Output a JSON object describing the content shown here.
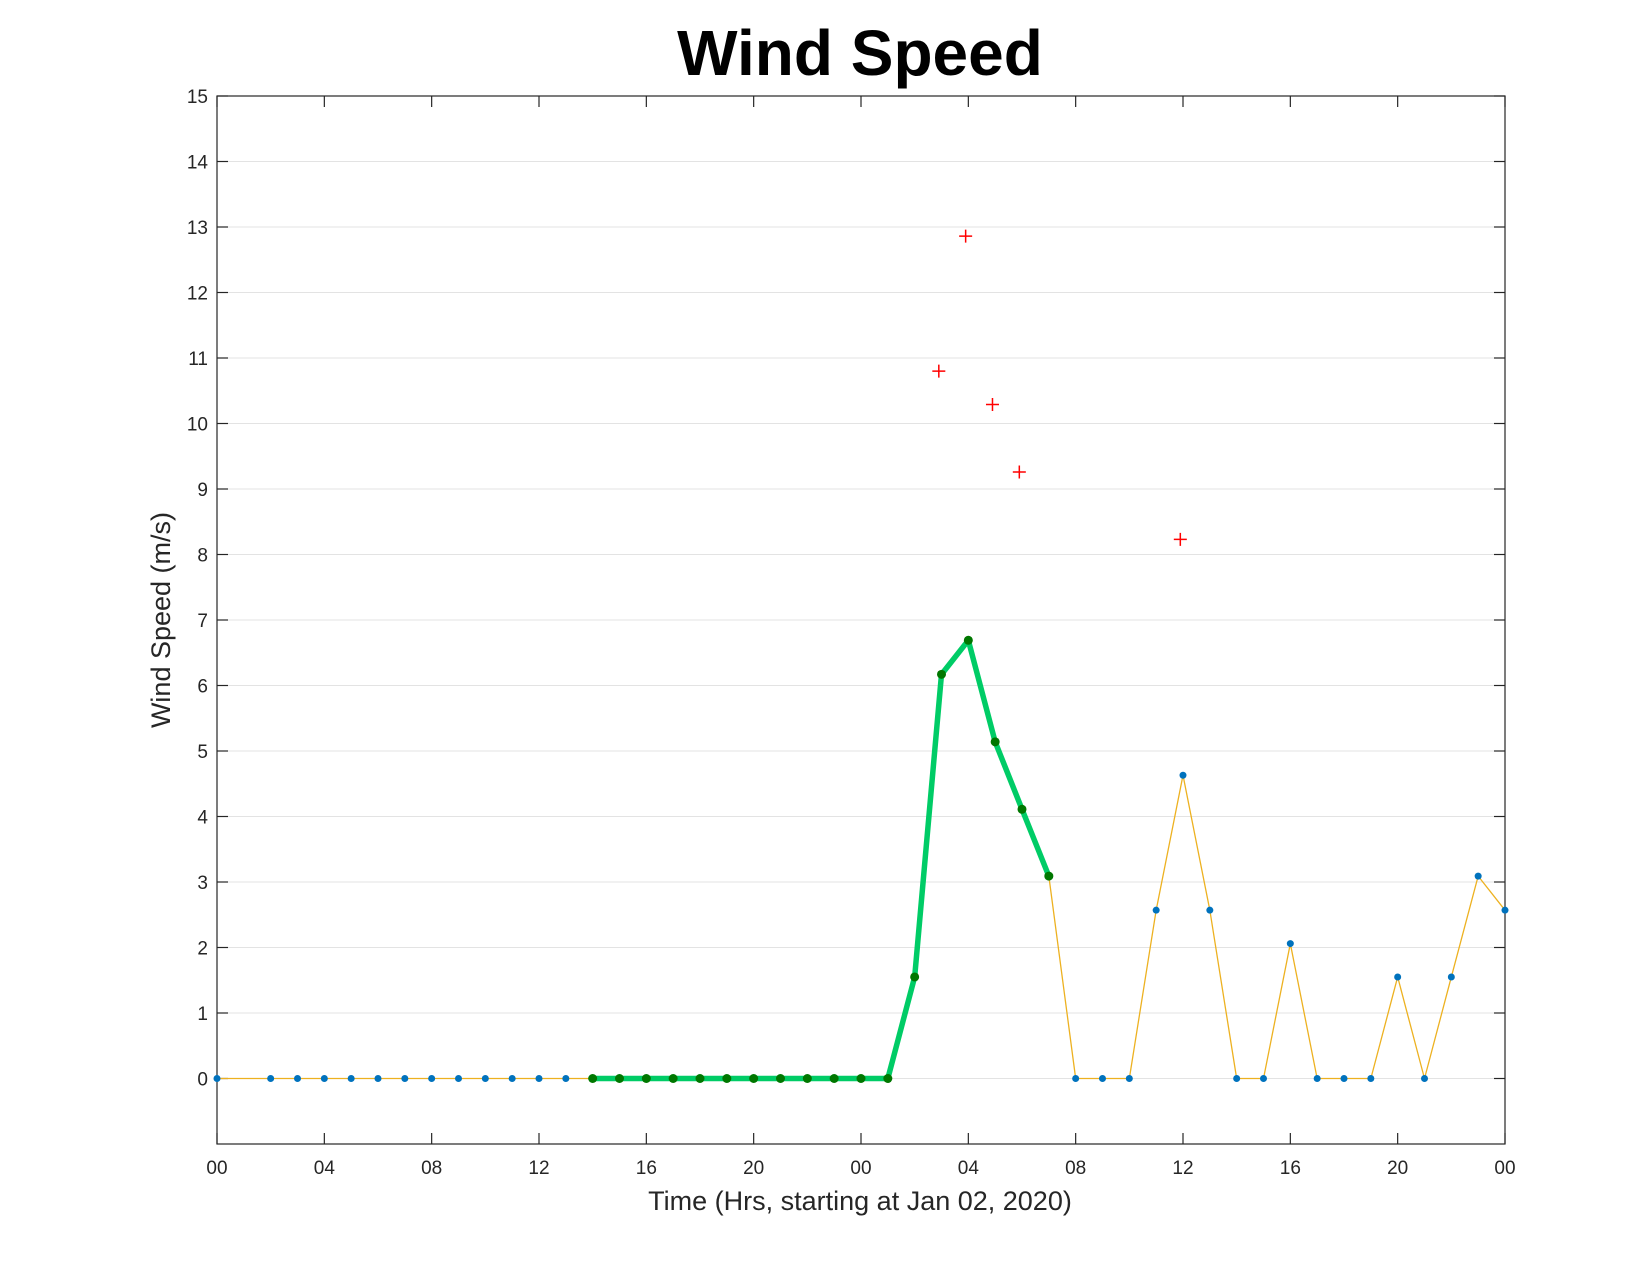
{
  "chart_data": {
    "type": "line",
    "title": "Wind Speed",
    "xlabel": "Time (Hrs, starting at Jan 02, 2020)",
    "ylabel": "Wind Speed (m/s)",
    "ylim": [
      -1,
      15
    ],
    "y_ticks": [
      "0",
      "1",
      "2",
      "3",
      "4",
      "5",
      "6",
      "7",
      "8",
      "9",
      "10",
      "11",
      "12",
      "13",
      "14",
      "15"
    ],
    "x_range_hours": [
      0,
      48
    ],
    "x_ticks": [
      "00",
      "04",
      "08",
      "12",
      "16",
      "20",
      "00",
      "04",
      "08",
      "12",
      "16",
      "20",
      "00"
    ],
    "grid": "horizontal",
    "legend": "none",
    "series": [
      {
        "style": "thin-line-with-dots",
        "line_color": "#EDB120",
        "marker_color": "#0072BD",
        "points": [
          [
            0,
            0
          ],
          [
            2,
            0
          ],
          [
            3,
            0
          ],
          [
            4,
            0
          ],
          [
            5,
            0
          ],
          [
            6,
            0
          ],
          [
            7,
            0
          ],
          [
            8,
            0
          ],
          [
            9,
            0
          ],
          [
            10,
            0
          ],
          [
            11,
            0
          ],
          [
            12,
            0
          ],
          [
            13,
            0
          ],
          [
            14,
            0
          ],
          [
            15,
            0
          ],
          [
            16,
            0
          ],
          [
            17,
            0
          ],
          [
            18,
            0
          ],
          [
            19,
            0
          ],
          [
            20,
            0
          ],
          [
            21,
            0
          ],
          [
            22,
            0
          ],
          [
            23,
            0
          ],
          [
            24,
            0
          ],
          [
            25,
            0
          ],
          [
            26,
            1.55
          ],
          [
            27,
            6.17
          ],
          [
            28,
            6.69
          ],
          [
            29,
            5.14
          ],
          [
            30,
            4.11
          ],
          [
            31,
            3.09
          ],
          [
            32,
            0
          ],
          [
            33,
            0
          ],
          [
            34,
            0
          ],
          [
            35,
            2.57
          ],
          [
            36,
            4.63
          ],
          [
            37,
            2.57
          ],
          [
            38,
            0
          ],
          [
            39,
            0
          ],
          [
            40,
            2.06
          ],
          [
            41,
            0
          ],
          [
            42,
            0
          ],
          [
            43,
            0
          ],
          [
            44,
            1.55
          ],
          [
            45,
            0
          ],
          [
            46,
            1.55
          ],
          [
            47,
            3.09
          ],
          [
            48,
            2.57
          ]
        ]
      },
      {
        "style": "thick-line-with-dots",
        "line_color": "#00CC66",
        "marker_color": "#007700",
        "points": [
          [
            14,
            0
          ],
          [
            15,
            0
          ],
          [
            16,
            0
          ],
          [
            17,
            0
          ],
          [
            18,
            0
          ],
          [
            19,
            0
          ],
          [
            20,
            0
          ],
          [
            21,
            0
          ],
          [
            22,
            0
          ],
          [
            23,
            0
          ],
          [
            24,
            0
          ],
          [
            25,
            0
          ],
          [
            26,
            1.55
          ],
          [
            27,
            6.17
          ],
          [
            28,
            6.69
          ],
          [
            29,
            5.14
          ],
          [
            30,
            4.11
          ],
          [
            31,
            3.09
          ]
        ]
      },
      {
        "style": "plus-markers",
        "marker_color": "#FF0000",
        "points": [
          [
            26.9,
            10.8
          ],
          [
            27.9,
            12.86
          ],
          [
            28.9,
            10.29
          ],
          [
            29.9,
            9.26
          ],
          [
            35.9,
            8.23
          ]
        ]
      }
    ]
  }
}
